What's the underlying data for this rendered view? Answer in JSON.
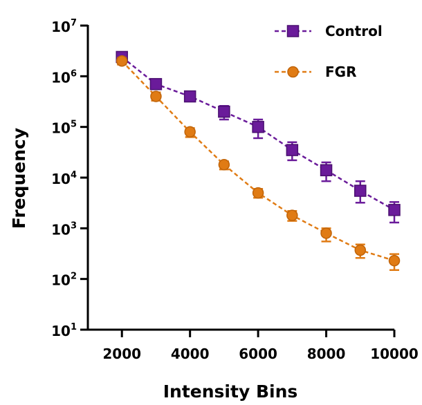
{
  "chart_data": {
    "type": "line",
    "xlabel": "Intensity Bins",
    "ylabel": "Frequency",
    "x_ticks": [
      "2000",
      "4000",
      "6000",
      "8000",
      "10000"
    ],
    "xlim": [
      1000,
      10000
    ],
    "y_scale": "log",
    "ylim": [
      10,
      10000000
    ],
    "y_ticks": [
      {
        "base": "10",
        "exp": "1",
        "value": 10
      },
      {
        "base": "10",
        "exp": "2",
        "value": 100
      },
      {
        "base": "10",
        "exp": "3",
        "value": 1000
      },
      {
        "base": "10",
        "exp": "4",
        "value": 10000
      },
      {
        "base": "10",
        "exp": "5",
        "value": 100000
      },
      {
        "base": "10",
        "exp": "6",
        "value": 1000000
      },
      {
        "base": "10",
        "exp": "7",
        "value": 10000000
      }
    ],
    "x": [
      2000,
      3000,
      4000,
      5000,
      6000,
      7000,
      8000,
      9000,
      10000
    ],
    "legend_position": "top-right",
    "grid": false,
    "series": [
      {
        "name": "Control",
        "color": "#6a1b9a",
        "marker": "square",
        "line_style": "dashed",
        "values": [
          2400000,
          700000,
          400000,
          200000,
          100000,
          35000,
          14000,
          5500,
          2300
        ],
        "error_low": [
          1900000,
          600000,
          330000,
          140000,
          60000,
          22000,
          8500,
          3200,
          1300
        ],
        "error_high": [
          2900000,
          800000,
          470000,
          260000,
          140000,
          50000,
          20000,
          8500,
          3300
        ]
      },
      {
        "name": "FGR",
        "color": "#e07b14",
        "marker": "circle",
        "line_style": "dashed",
        "values": [
          2000000,
          400000,
          80000,
          18000,
          5000,
          1800,
          800,
          370,
          230
        ],
        "error_low": [
          1700000,
          330000,
          63000,
          14500,
          4000,
          1400,
          550,
          260,
          150
        ],
        "error_high": [
          2300000,
          480000,
          95000,
          21000,
          6000,
          2200,
          1000,
          480,
          310
        ]
      }
    ]
  }
}
